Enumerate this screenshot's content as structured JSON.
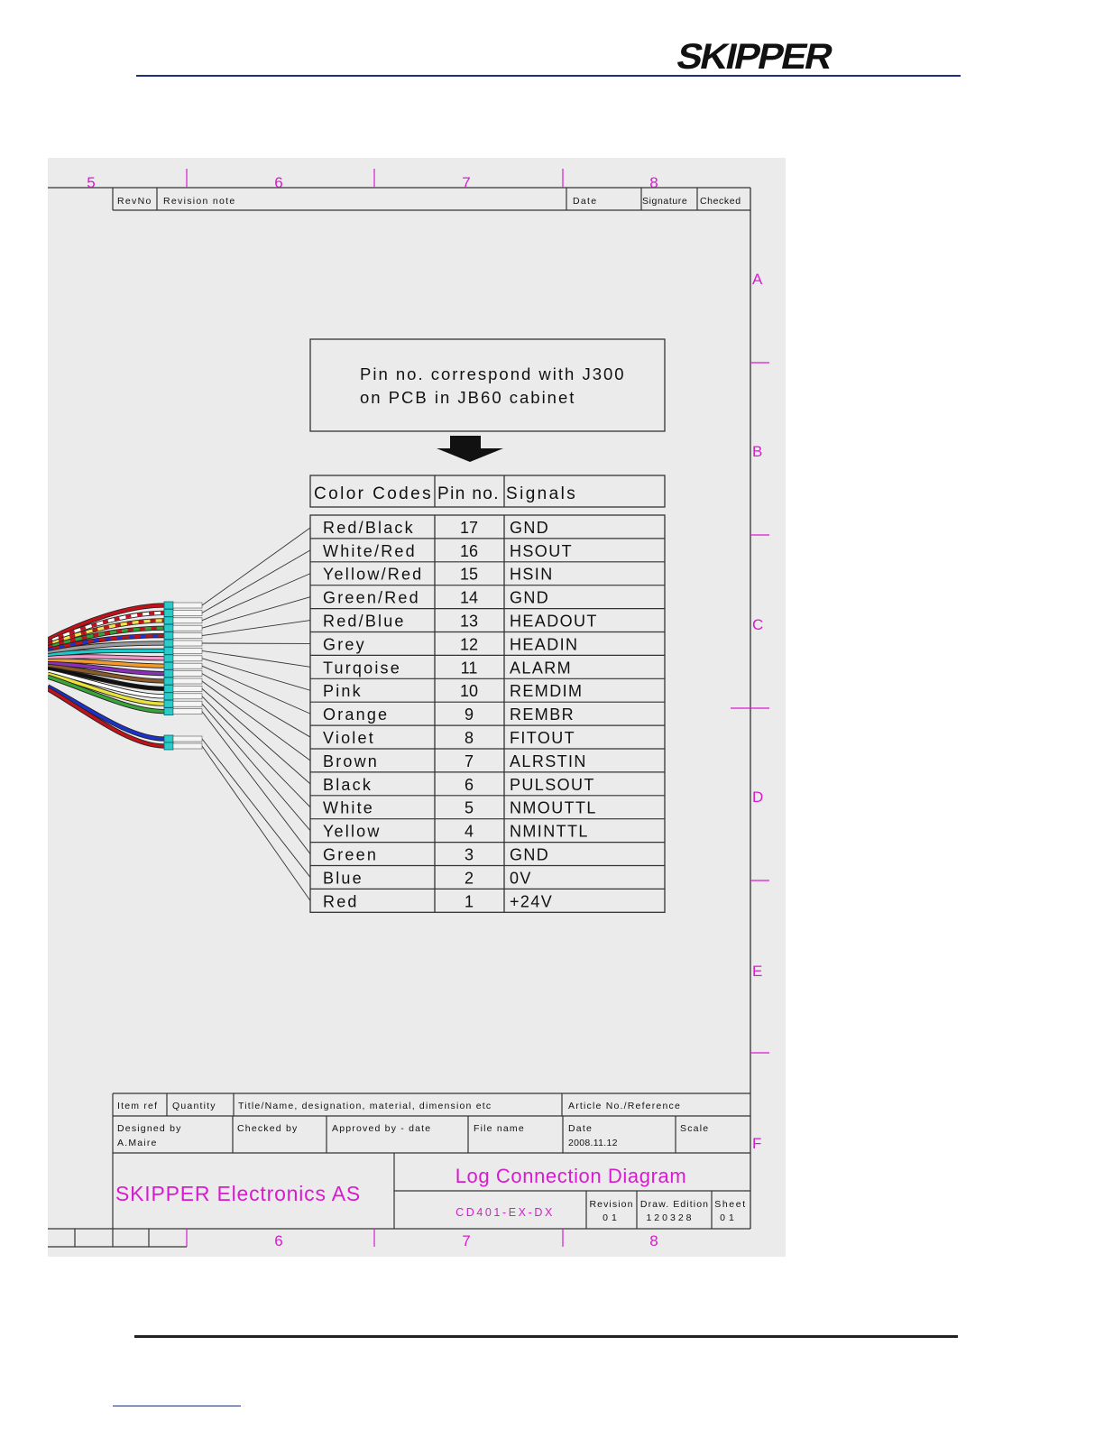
{
  "header": {
    "logo_text": "SKIPPER"
  },
  "drawing": {
    "column_labels": [
      "5",
      "6",
      "7",
      "8"
    ],
    "row_labels": [
      "A",
      "B",
      "C",
      "D",
      "E",
      "F"
    ],
    "revision_header": {
      "rev_no": "RevNo",
      "revision_note": "Revision note",
      "date": "Date",
      "signature": "Signature",
      "checked": "Checked"
    },
    "note": {
      "line1": "Pin no. correspond with J300",
      "line2": "on PCB in JB60 cabinet"
    },
    "table": {
      "headers": [
        "Color Codes",
        "Pin no.",
        "Signals"
      ],
      "rows": [
        {
          "color": "Red/Black",
          "pin": "17",
          "signal": "GND"
        },
        {
          "color": "White/Red",
          "pin": "16",
          "signal": "HSOUT"
        },
        {
          "color": "Yellow/Red",
          "pin": "15",
          "signal": "HSIN"
        },
        {
          "color": "Green/Red",
          "pin": "14",
          "signal": "GND"
        },
        {
          "color": "Red/Blue",
          "pin": "13",
          "signal": "HEADOUT"
        },
        {
          "color": "Grey",
          "pin": "12",
          "signal": "HEADIN"
        },
        {
          "color": "Turqoise",
          "pin": "11",
          "signal": "ALARM"
        },
        {
          "color": "Pink",
          "pin": "10",
          "signal": "REMDIM"
        },
        {
          "color": "Orange",
          "pin": "9",
          "signal": "REMBR"
        },
        {
          "color": "Violet",
          "pin": "8",
          "signal": "FITOUT"
        },
        {
          "color": "Brown",
          "pin": "7",
          "signal": "ALRSTIN"
        },
        {
          "color": "Black",
          "pin": "6",
          "signal": "PULSOUT"
        },
        {
          "color": "White",
          "pin": "5",
          "signal": "NMOUTTL"
        },
        {
          "color": "Yellow",
          "pin": "4",
          "signal": "NMINTTL"
        },
        {
          "color": "Green",
          "pin": "3",
          "signal": "GND"
        },
        {
          "color": "Blue",
          "pin": "2",
          "signal": "0V"
        },
        {
          "color": "Red",
          "pin": "1",
          "signal": "+24V"
        }
      ]
    },
    "title_block": {
      "item_ref": "Item ref",
      "quantity": "Quantity",
      "title_desc": "Title/Name, designation, material, dimension etc",
      "article_no": "Article No./Reference",
      "designed_by_label": "Designed by",
      "designed_by_value": "A.Maire",
      "checked_by": "Checked by",
      "approved_by": "Approved by - date",
      "file_name": "File name",
      "date_label": "Date",
      "date_value": "2008.11.12",
      "scale": "Scale",
      "company": "SKIPPER Electronics AS",
      "drawing_title": "Log Connection Diagram",
      "drawing_no": "CD401-EX-DX",
      "revision_label": "Revision",
      "revision_value": "01",
      "edition_label": "Draw. Edition",
      "edition_value": "120328",
      "sheet_label": "Sheet",
      "sheet_value": "01"
    }
  }
}
